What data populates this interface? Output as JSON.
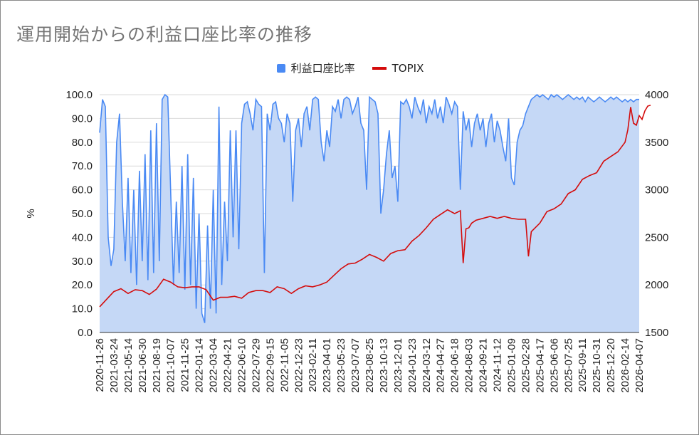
{
  "chart_data": {
    "type": "area",
    "title": "運用開始からの利益口座比率の推移",
    "xlabel": "",
    "ylabel": "%",
    "y2label": "",
    "ylim": [
      0,
      100
    ],
    "y2lim": [
      1500,
      4000
    ],
    "yticks": [
      "0.0",
      "10.0",
      "20.0",
      "30.0",
      "40.0",
      "50.0",
      "60.0",
      "70.0",
      "80.0",
      "90.0",
      "100.0"
    ],
    "y2ticks": [
      "1500",
      "2000",
      "2500",
      "3000",
      "3500",
      "4000"
    ],
    "grid": true,
    "legend_position": "top",
    "categories": [
      "2020-11-26",
      "2021-03-24",
      "2021-05-14",
      "2021-06-30",
      "2021-08-19",
      "2021-10-07",
      "2021-11-25",
      "2022-01-14",
      "2022-03-04",
      "2022-04-21",
      "2022-06-10",
      "2022-07-29",
      "2022-09-15",
      "2022-11-05",
      "2022-12-23",
      "2023-02-11",
      "2023-04-01",
      "2023-05-23",
      "2023-07-07",
      "2023-08-25",
      "2023-10-13",
      "2023-12-01",
      "2024-01-23",
      "2024-03-12",
      "2024-04-27",
      "2024-06-18",
      "2024-08-03",
      "2024-09-21",
      "2024-11-12",
      "2025-01-09",
      "2025-02-28",
      "2025-04-17",
      "2025-06-06",
      "2025-07-25",
      "2025-09-11",
      "2025-10-31",
      "2025-12-20",
      "2026-02-14",
      "2026-04-07"
    ],
    "series": [
      {
        "name": "利益口座比率",
        "axis": "left",
        "color": "#4a8af4",
        "fill": "#c5d8f6",
        "values": [
          [
            0,
            84
          ],
          [
            0.2,
            98
          ],
          [
            0.4,
            95
          ],
          [
            0.6,
            40
          ],
          [
            0.8,
            28
          ],
          [
            1.0,
            35
          ],
          [
            1.2,
            80
          ],
          [
            1.4,
            92
          ],
          [
            1.6,
            55
          ],
          [
            1.8,
            30
          ],
          [
            2.0,
            65
          ],
          [
            2.2,
            25
          ],
          [
            2.4,
            60
          ],
          [
            2.6,
            20
          ],
          [
            2.8,
            68
          ],
          [
            3.0,
            30
          ],
          [
            3.2,
            75
          ],
          [
            3.4,
            22
          ],
          [
            3.6,
            85
          ],
          [
            3.8,
            25
          ],
          [
            4.0,
            88
          ],
          [
            4.2,
            30
          ],
          [
            4.4,
            98
          ],
          [
            4.6,
            100
          ],
          [
            4.8,
            99
          ],
          [
            5.0,
            60
          ],
          [
            5.2,
            20
          ],
          [
            5.4,
            55
          ],
          [
            5.6,
            25
          ],
          [
            5.8,
            70
          ],
          [
            6.0,
            18
          ],
          [
            6.2,
            75
          ],
          [
            6.4,
            20
          ],
          [
            6.6,
            65
          ],
          [
            6.8,
            10
          ],
          [
            7.0,
            50
          ],
          [
            7.2,
            8
          ],
          [
            7.4,
            4
          ],
          [
            7.6,
            45
          ],
          [
            7.8,
            10
          ],
          [
            8.0,
            60
          ],
          [
            8.2,
            8
          ],
          [
            8.4,
            95
          ],
          [
            8.6,
            20
          ],
          [
            8.8,
            55
          ],
          [
            9.0,
            30
          ],
          [
            9.2,
            85
          ],
          [
            9.4,
            40
          ],
          [
            9.6,
            85
          ],
          [
            9.8,
            35
          ],
          [
            10.0,
            88
          ],
          [
            10.2,
            96
          ],
          [
            10.4,
            97
          ],
          [
            10.6,
            92
          ],
          [
            10.8,
            85
          ],
          [
            11.0,
            98
          ],
          [
            11.2,
            96
          ],
          [
            11.4,
            95
          ],
          [
            11.6,
            25
          ],
          [
            11.8,
            92
          ],
          [
            12.0,
            85
          ],
          [
            12.2,
            96
          ],
          [
            12.4,
            97
          ],
          [
            12.6,
            90
          ],
          [
            12.8,
            88
          ],
          [
            13.0,
            80
          ],
          [
            13.2,
            92
          ],
          [
            13.4,
            88
          ],
          [
            13.6,
            55
          ],
          [
            13.8,
            85
          ],
          [
            14.0,
            90
          ],
          [
            14.2,
            78
          ],
          [
            14.4,
            92
          ],
          [
            14.6,
            95
          ],
          [
            14.8,
            85
          ],
          [
            15.0,
            98
          ],
          [
            15.2,
            99
          ],
          [
            15.4,
            98
          ],
          [
            15.6,
            80
          ],
          [
            15.8,
            72
          ],
          [
            16.0,
            85
          ],
          [
            16.2,
            78
          ],
          [
            16.4,
            95
          ],
          [
            16.6,
            93
          ],
          [
            16.8,
            98
          ],
          [
            17.0,
            90
          ],
          [
            17.2,
            98
          ],
          [
            17.4,
            99
          ],
          [
            17.6,
            98
          ],
          [
            17.8,
            92
          ],
          [
            18.0,
            95
          ],
          [
            18.2,
            99
          ],
          [
            18.4,
            88
          ],
          [
            18.6,
            85
          ],
          [
            18.8,
            60
          ],
          [
            19.0,
            99
          ],
          [
            19.2,
            98
          ],
          [
            19.4,
            97
          ],
          [
            19.6,
            92
          ],
          [
            19.8,
            50
          ],
          [
            20.0,
            60
          ],
          [
            20.2,
            75
          ],
          [
            20.4,
            85
          ],
          [
            20.6,
            65
          ],
          [
            20.8,
            70
          ],
          [
            21.0,
            55
          ],
          [
            21.2,
            97
          ],
          [
            21.4,
            96
          ],
          [
            21.6,
            98
          ],
          [
            21.8,
            95
          ],
          [
            22.0,
            90
          ],
          [
            22.2,
            99
          ],
          [
            22.4,
            95
          ],
          [
            22.6,
            92
          ],
          [
            22.8,
            98
          ],
          [
            23.0,
            88
          ],
          [
            23.2,
            95
          ],
          [
            23.4,
            92
          ],
          [
            23.6,
            98
          ],
          [
            23.8,
            90
          ],
          [
            24.0,
            95
          ],
          [
            24.2,
            88
          ],
          [
            24.4,
            99
          ],
          [
            24.6,
            96
          ],
          [
            24.8,
            92
          ],
          [
            25.0,
            97
          ],
          [
            25.2,
            95
          ],
          [
            25.4,
            60
          ],
          [
            25.6,
            93
          ],
          [
            25.8,
            85
          ],
          [
            26.0,
            90
          ],
          [
            26.2,
            78
          ],
          [
            26.4,
            88
          ],
          [
            26.6,
            92
          ],
          [
            26.8,
            85
          ],
          [
            27.0,
            90
          ],
          [
            27.2,
            78
          ],
          [
            27.4,
            88
          ],
          [
            27.6,
            92
          ],
          [
            27.8,
            80
          ],
          [
            28.0,
            89
          ],
          [
            28.2,
            85
          ],
          [
            28.4,
            78
          ],
          [
            28.6,
            72
          ],
          [
            28.8,
            90
          ],
          [
            29.0,
            65
          ],
          [
            29.2,
            62
          ],
          [
            29.4,
            80
          ],
          [
            29.6,
            85
          ],
          [
            29.8,
            87
          ],
          [
            30.0,
            92
          ],
          [
            30.2,
            95
          ],
          [
            30.4,
            98
          ],
          [
            30.6,
            99
          ],
          [
            30.8,
            100
          ],
          [
            31.0,
            99
          ],
          [
            31.2,
            100
          ],
          [
            31.4,
            99
          ],
          [
            31.6,
            98
          ],
          [
            31.8,
            100
          ],
          [
            32.0,
            99
          ],
          [
            32.2,
            100
          ],
          [
            32.4,
            99
          ],
          [
            32.6,
            98
          ],
          [
            32.8,
            99
          ],
          [
            33.0,
            100
          ],
          [
            33.2,
            99
          ],
          [
            33.4,
            98
          ],
          [
            33.6,
            99
          ],
          [
            33.8,
            98
          ],
          [
            34.0,
            99
          ],
          [
            34.2,
            97
          ],
          [
            34.4,
            99
          ],
          [
            34.6,
            98
          ],
          [
            34.8,
            97
          ],
          [
            35.0,
            98
          ],
          [
            35.2,
            99
          ],
          [
            35.4,
            98
          ],
          [
            35.6,
            97
          ],
          [
            35.8,
            98
          ],
          [
            36.0,
            99
          ],
          [
            36.2,
            98
          ],
          [
            36.4,
            99
          ],
          [
            36.6,
            98
          ],
          [
            36.8,
            97
          ],
          [
            37.0,
            98
          ],
          [
            37.2,
            97
          ],
          [
            37.4,
            98
          ],
          [
            37.6,
            97
          ],
          [
            37.8,
            98
          ],
          [
            38.0,
            98
          ]
        ]
      },
      {
        "name": "TOPIX",
        "axis": "right",
        "color": "#d40c0c",
        "values": [
          [
            0,
            1770
          ],
          [
            0.5,
            1850
          ],
          [
            1.0,
            1930
          ],
          [
            1.5,
            1960
          ],
          [
            2.0,
            1910
          ],
          [
            2.5,
            1950
          ],
          [
            3.0,
            1940
          ],
          [
            3.5,
            1900
          ],
          [
            4.0,
            1955
          ],
          [
            4.5,
            2060
          ],
          [
            5.0,
            2030
          ],
          [
            5.5,
            1980
          ],
          [
            6.0,
            1970
          ],
          [
            6.5,
            1980
          ],
          [
            7.0,
            1980
          ],
          [
            7.5,
            1950
          ],
          [
            8.0,
            1840
          ],
          [
            8.5,
            1870
          ],
          [
            9.0,
            1870
          ],
          [
            9.5,
            1880
          ],
          [
            10.0,
            1860
          ],
          [
            10.5,
            1920
          ],
          [
            11.0,
            1940
          ],
          [
            11.5,
            1940
          ],
          [
            12.0,
            1920
          ],
          [
            12.5,
            1980
          ],
          [
            13.0,
            1960
          ],
          [
            13.5,
            1910
          ],
          [
            14.0,
            1960
          ],
          [
            14.5,
            1990
          ],
          [
            15.0,
            1980
          ],
          [
            15.5,
            2000
          ],
          [
            16.0,
            2030
          ],
          [
            16.5,
            2100
          ],
          [
            17.0,
            2170
          ],
          [
            17.5,
            2220
          ],
          [
            18.0,
            2230
          ],
          [
            18.5,
            2270
          ],
          [
            19.0,
            2320
          ],
          [
            19.5,
            2290
          ],
          [
            20.0,
            2250
          ],
          [
            20.5,
            2330
          ],
          [
            21.0,
            2360
          ],
          [
            21.5,
            2370
          ],
          [
            22.0,
            2460
          ],
          [
            22.5,
            2520
          ],
          [
            23.0,
            2600
          ],
          [
            23.5,
            2690
          ],
          [
            24.0,
            2740
          ],
          [
            24.5,
            2790
          ],
          [
            25.0,
            2750
          ],
          [
            25.4,
            2780
          ],
          [
            25.6,
            2230
          ],
          [
            25.8,
            2590
          ],
          [
            26.0,
            2600
          ],
          [
            26.2,
            2650
          ],
          [
            26.5,
            2680
          ],
          [
            27.0,
            2700
          ],
          [
            27.5,
            2720
          ],
          [
            28.0,
            2700
          ],
          [
            28.5,
            2720
          ],
          [
            29.0,
            2700
          ],
          [
            29.5,
            2690
          ],
          [
            30.0,
            2690
          ],
          [
            30.2,
            2300
          ],
          [
            30.4,
            2560
          ],
          [
            31.0,
            2650
          ],
          [
            31.5,
            2770
          ],
          [
            32.0,
            2800
          ],
          [
            32.5,
            2850
          ],
          [
            33.0,
            2960
          ],
          [
            33.5,
            3000
          ],
          [
            34.0,
            3110
          ],
          [
            34.5,
            3150
          ],
          [
            35.0,
            3180
          ],
          [
            35.5,
            3300
          ],
          [
            36.0,
            3350
          ],
          [
            36.5,
            3400
          ],
          [
            37.0,
            3500
          ],
          [
            37.2,
            3630
          ],
          [
            37.4,
            3870
          ],
          [
            37.6,
            3700
          ],
          [
            37.8,
            3680
          ],
          [
            38.0,
            3780
          ],
          [
            38.2,
            3740
          ],
          [
            38.4,
            3830
          ],
          [
            38.6,
            3880
          ],
          [
            38.8,
            3890
          ]
        ]
      }
    ]
  }
}
